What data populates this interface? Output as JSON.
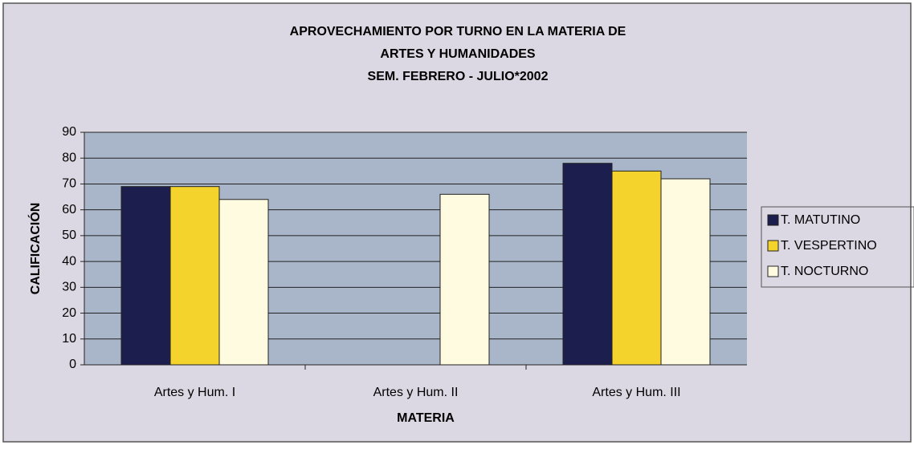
{
  "chart_data": {
    "type": "bar",
    "title": [
      "APROVECHAMIENTO POR TURNO EN LA MATERIA DE",
      "ARTES Y HUMANIDADES",
      "SEM. FEBRERO - JULIO*2002"
    ],
    "x_label": "MATERIA",
    "y_label": "CALIFICACIÓN",
    "categories": [
      "Artes y Hum. I",
      "Artes y Hum. II",
      "Artes y Hum. III"
    ],
    "series": [
      {
        "name": "T. MATUTINO",
        "color": "#1c1f4d",
        "values": [
          69,
          null,
          78
        ]
      },
      {
        "name": "T. VESPERTINO",
        "color": "#f4d42c",
        "values": [
          69,
          null,
          75
        ]
      },
      {
        "name": "T. NOCTURNO",
        "color": "#fffbe0",
        "values": [
          64,
          66,
          72
        ]
      }
    ],
    "ylim": [
      0,
      90
    ],
    "yticks": [
      0,
      10,
      20,
      30,
      40,
      50,
      60,
      70,
      80,
      90
    ],
    "grid": true,
    "legend": "right"
  }
}
